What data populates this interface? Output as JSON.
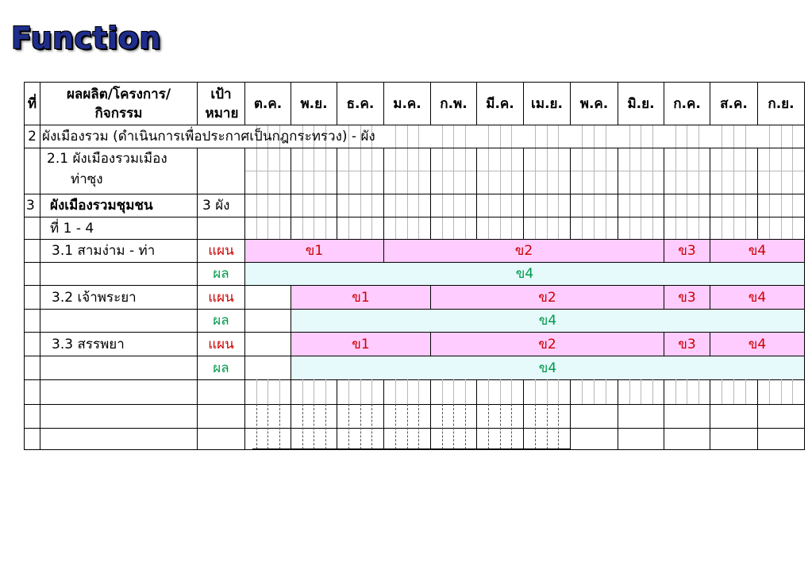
{
  "title": "Function",
  "header": {
    "no": "ที่",
    "activity": "ผลผลิต/โครงการ/กิจกรรม",
    "target": "เป้าหมาย",
    "months": [
      "ต.ค.",
      "พ.ย.",
      "ธ.ค.",
      "ม.ค.",
      "ก.พ.",
      "มี.ค.",
      "เม.ย.",
      "พ.ค.",
      "มิ.ย.",
      "ก.ค.",
      "ส.ค.",
      "ก.ย."
    ]
  },
  "rows": {
    "r2_no": "2",
    "r2_text": "ผังเมืองรวม (ดำเนินการเพื่อประกาศเป็นกฎกระทรวง)  -  ผัง",
    "r21_line1": "2.1 ผังเมืองรวมเมือง",
    "r21_line2": "ท่าซุง",
    "r3_no": "3",
    "r3_text": "ผังเมืองรวมชุมชน",
    "r3_target": "3 ผัง",
    "r3_cont": "ที่ 1 - 4",
    "r31": "3.1 สามง่าม - ท่า",
    "r32": "3.2 เจ้าพระยา",
    "r33": "3.3 สรรพยา",
    "plan": "แผน",
    "result": "ผล"
  },
  "bars": {
    "plan_31": [
      "ข1",
      "ข2",
      "ข3",
      "ข4"
    ],
    "res_31": "ข4",
    "plan_32": [
      "ข1",
      "ข2",
      "ข3",
      "ข4"
    ],
    "res_32": "ข4",
    "plan_33": [
      "ข1",
      "ข2",
      "ข3",
      "ข4"
    ],
    "res_33": "ข4"
  },
  "colors": {
    "title": "#1f2d8c",
    "plan": "#ffccff",
    "result": "#e6fafb",
    "plan_text": "#cc0000",
    "result_text": "#00994c"
  }
}
